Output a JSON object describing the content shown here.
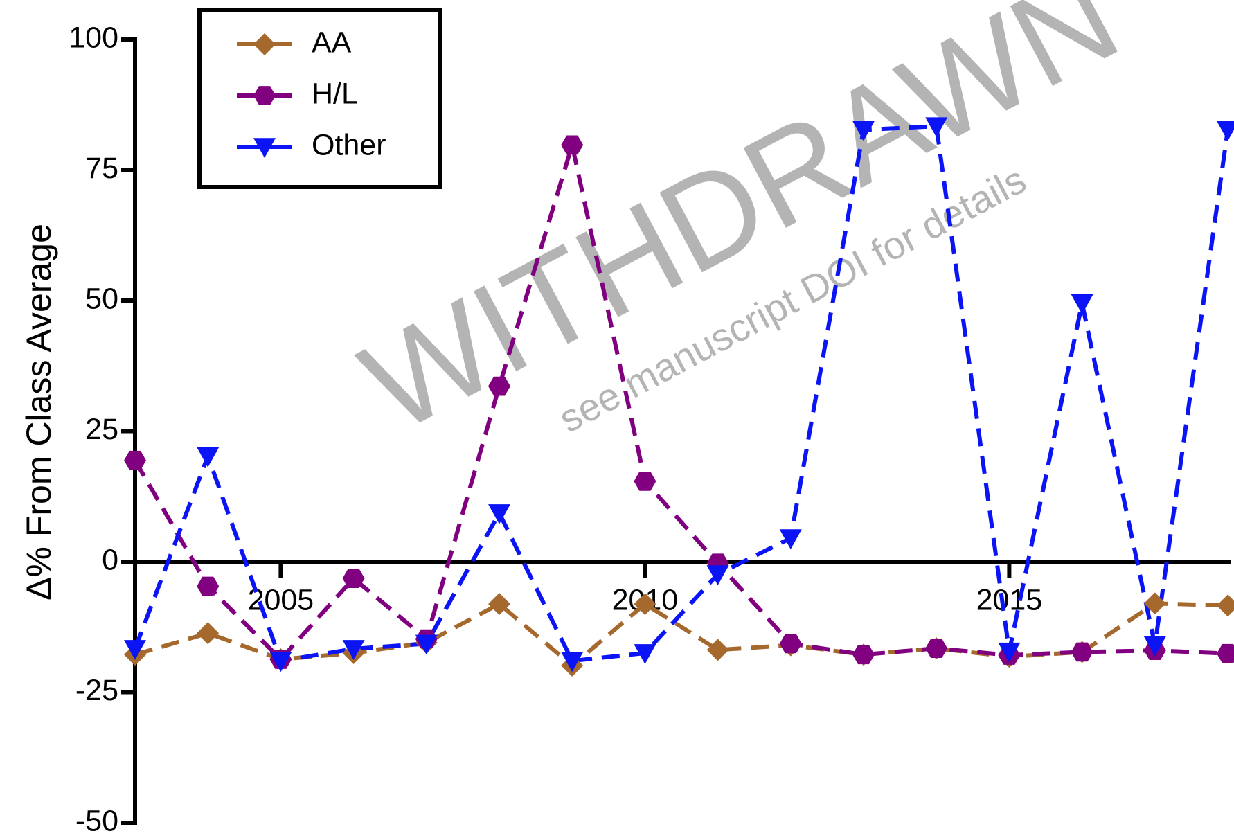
{
  "chart_data": {
    "type": "line",
    "ylabel": "Δ% From Class Average",
    "watermark": "WITHDRAWN",
    "watermark_note": "see manuscript DOI for details",
    "x": [
      2003,
      2004,
      2005,
      2006,
      2007,
      2008,
      2009,
      2010,
      2011,
      2012,
      2013,
      2014,
      2015,
      2016,
      2017,
      2018
    ],
    "series": [
      {
        "name": "AA",
        "color": "#a5692e",
        "marker": "diamond",
        "values": [
          -17.8,
          -13.7,
          -18.7,
          -17.5,
          -15.5,
          -8.1,
          -19.9,
          -8.1,
          -16.9,
          -16.0,
          -17.8,
          -16.6,
          -18.2,
          -17.3,
          -8.0,
          -8.4
        ]
      },
      {
        "name": "H/L",
        "color": "#800080",
        "marker": "hexagon",
        "values": [
          19.4,
          -4.7,
          -18.7,
          -3.2,
          -14.8,
          33.6,
          79.8,
          15.4,
          -0.3,
          -15.7,
          -17.8,
          -16.6,
          -17.9,
          -17.3,
          -17.0,
          -17.6
        ]
      },
      {
        "name": "Other",
        "color": "#0a14f5",
        "marker": "triangle-down",
        "values": [
          -16.7,
          20.2,
          -19.0,
          -16.7,
          -15.7,
          9.3,
          -19.0,
          -17.5,
          -2.4,
          4.5,
          82.7,
          83.4,
          -17.2,
          49.5,
          -16.0,
          82.7
        ]
      }
    ],
    "xlim": [
      2003,
      2018
    ],
    "xticks": [
      2005,
      2010,
      2015
    ],
    "ylim": [
      -50,
      100
    ],
    "yticks": [
      -50,
      -25,
      0,
      25,
      50,
      75,
      100
    ],
    "legend": "upper left",
    "grid": false
  }
}
